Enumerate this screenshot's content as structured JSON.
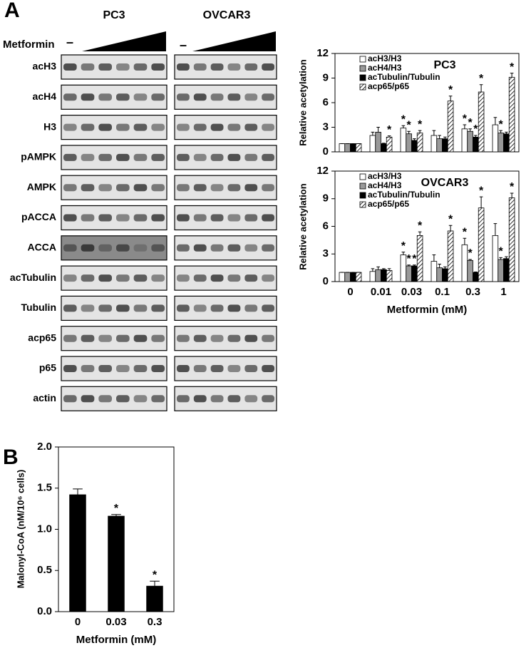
{
  "blots": {
    "panel_label": "A",
    "cell_lines": [
      "PC3",
      "OVCAR3"
    ],
    "treatment": "Metformin",
    "control_marks": [
      "–",
      "–"
    ],
    "rows": [
      "acH3",
      "acH4",
      "H3",
      "pAMPK",
      "AMPK",
      "pACCA",
      "ACCA",
      "acTubulin",
      "Tubulin",
      "acp65",
      "p65",
      "actin"
    ]
  },
  "panel_b_label": "B",
  "chart_data": [
    {
      "type": "bar",
      "title": "PC3",
      "ylabel": "Relative acetylation",
      "ylim": [
        0,
        12
      ],
      "yticks": [
        0,
        3,
        6,
        9,
        12
      ],
      "series": [
        {
          "name": "acH3/H3",
          "color": "#ffffff",
          "values": [
            1,
            2.0,
            2.9,
            2.0,
            2.8,
            3.3
          ],
          "errors": [
            0,
            0.4,
            0.3,
            0.6,
            0.5,
            0.9
          ],
          "significance": [
            null,
            null,
            "*",
            null,
            "*",
            null
          ]
        },
        {
          "name": "acH4/H3",
          "color": "#999999",
          "values": [
            1,
            2.4,
            2.2,
            1.6,
            2.5,
            2.3
          ],
          "errors": [
            0,
            0.6,
            0.3,
            0.4,
            0.3,
            0.3
          ],
          "significance": [
            null,
            null,
            "*",
            null,
            "*",
            "*"
          ]
        },
        {
          "name": "acTubulin/Tubulin",
          "color": "#000000",
          "values": [
            1,
            1.0,
            1.4,
            1.6,
            1.8,
            2.2
          ],
          "errors": [
            0,
            0.05,
            0.2,
            0.2,
            0.2,
            0.2
          ],
          "significance": [
            null,
            null,
            null,
            null,
            "*",
            null
          ]
        },
        {
          "name": "acp65/p65",
          "color": "#ffffff",
          "hatch": true,
          "values": [
            1,
            1.8,
            2.3,
            6.2,
            7.3,
            9.1
          ],
          "errors": [
            0,
            0.15,
            0.3,
            0.6,
            0.9,
            0.5
          ],
          "significance": [
            null,
            "*",
            "*",
            "*",
            "*",
            "*"
          ]
        }
      ]
    },
    {
      "type": "bar",
      "title": "OVCAR3",
      "ylabel": "Relative acetylation",
      "xlabel": "Metformin (mM)",
      "categories": [
        "0",
        "0.01",
        "0.03",
        "0.1",
        "0.3",
        "1"
      ],
      "ylim": [
        0,
        12
      ],
      "yticks": [
        0,
        3,
        6,
        9,
        12
      ],
      "series": [
        {
          "name": "acH3/H3",
          "color": "#ffffff",
          "values": [
            1,
            1.1,
            2.9,
            2.2,
            4.0,
            5.0
          ],
          "errors": [
            0,
            0.3,
            0.3,
            0.7,
            0.7,
            1.3
          ],
          "significance": [
            null,
            null,
            "*",
            null,
            "*",
            null
          ]
        },
        {
          "name": "acH4/H3",
          "color": "#999999",
          "values": [
            1,
            1.3,
            1.7,
            1.5,
            2.3,
            2.4
          ],
          "errors": [
            0,
            0.3,
            0.1,
            0.4,
            0.1,
            0.2
          ],
          "significance": [
            null,
            null,
            "*",
            null,
            "*",
            "*"
          ]
        },
        {
          "name": "acTubulin/Tubulin",
          "color": "#000000",
          "values": [
            1,
            1.3,
            1.7,
            1.4,
            1.0,
            2.5
          ],
          "errors": [
            0,
            0.1,
            0.1,
            0.2,
            0.05,
            0.2
          ],
          "significance": [
            null,
            null,
            "*",
            null,
            null,
            null
          ]
        },
        {
          "name": "acp65/p65",
          "color": "#ffffff",
          "hatch": true,
          "values": [
            1,
            1.2,
            5.0,
            5.5,
            8.0,
            9.1
          ],
          "errors": [
            0,
            0.2,
            0.4,
            0.6,
            1.2,
            0.5
          ],
          "significance": [
            null,
            null,
            "*",
            "*",
            "*",
            "*"
          ]
        }
      ]
    },
    {
      "type": "bar",
      "ylabel": "Malonyl-CoA (nM/10⁶ cells)",
      "xlabel": "Metformin (mM)",
      "categories": [
        "0",
        "0.03",
        "0.3"
      ],
      "values": [
        1.42,
        1.16,
        0.31
      ],
      "errors": [
        0.07,
        0.02,
        0.06
      ],
      "significance": [
        null,
        "*",
        "*"
      ],
      "color": "#000000",
      "ylim": [
        0,
        2
      ],
      "yticks": [
        {
          "value": 0,
          "label": "0.0"
        },
        {
          "value": 0.5,
          "label": "0.5"
        },
        {
          "value": 1,
          "label": "1.0"
        },
        {
          "value": 1.5,
          "label": "1.5"
        },
        {
          "value": 2,
          "label": "2.0"
        }
      ]
    }
  ]
}
